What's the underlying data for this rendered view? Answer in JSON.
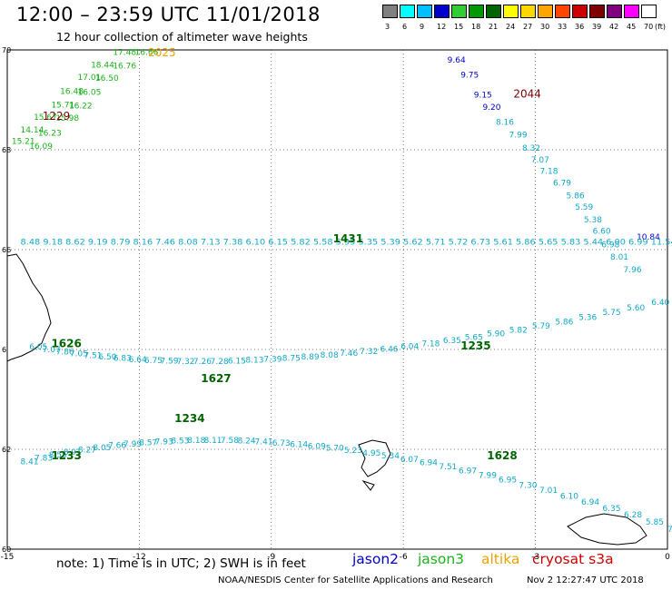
{
  "header": {
    "title": "12:00 – 23:59 UTC 11/01/2018",
    "subtitle": "12 hour collection of altimeter wave heights"
  },
  "legend": {
    "unit": "(ft)",
    "items": [
      {
        "label": "3",
        "color": "#808080"
      },
      {
        "label": "6",
        "color": "#00ffff"
      },
      {
        "label": "9",
        "color": "#00bfff"
      },
      {
        "label": "12",
        "color": "#0000cd"
      },
      {
        "label": "15",
        "color": "#32cd32"
      },
      {
        "label": "18",
        "color": "#009900"
      },
      {
        "label": "21",
        "color": "#006400"
      },
      {
        "label": "24",
        "color": "#ffff00"
      },
      {
        "label": "27",
        "color": "#ffd700"
      },
      {
        "label": "30",
        "color": "#ffa500"
      },
      {
        "label": "33",
        "color": "#ff4500"
      },
      {
        "label": "36",
        "color": "#cc0000"
      },
      {
        "label": "39",
        "color": "#800000"
      },
      {
        "label": "42",
        "color": "#800080"
      },
      {
        "label": "45",
        "color": "#ff00ff"
      },
      {
        "label": "70",
        "color": "#ffffff"
      }
    ]
  },
  "axes": {
    "x_ticks": [
      "-15",
      "-12",
      "-9",
      "-6",
      "-3",
      "0"
    ],
    "y_ticks": [
      "70",
      "68",
      "66",
      "64",
      "62",
      "60"
    ]
  },
  "tracks": [
    {
      "satellite": "jason3",
      "color": "#1ab21a",
      "pass_time": "1229",
      "time_color": "#7a0000",
      "time_pos": [
        -14.2,
        68.6
      ],
      "points": [
        {
          "v": "17.48",
          "lon": -12.6,
          "lat": 69.9
        },
        {
          "v": "16.66",
          "lon": -12.1,
          "lat": 69.9
        },
        {
          "v": "18.44",
          "lon": -13.1,
          "lat": 69.65
        },
        {
          "v": "16.76",
          "lon": -12.6,
          "lat": 69.63
        },
        {
          "v": "17.01",
          "lon": -13.4,
          "lat": 69.4
        },
        {
          "v": "16.50",
          "lon": -13.0,
          "lat": 69.38
        },
        {
          "v": "16.48",
          "lon": -13.8,
          "lat": 69.12
        },
        {
          "v": "16.05",
          "lon": -13.4,
          "lat": 69.1
        },
        {
          "v": "15.71",
          "lon": -14.0,
          "lat": 68.85
        },
        {
          "v": "16.22",
          "lon": -13.6,
          "lat": 68.83
        },
        {
          "v": "15.67",
          "lon": -14.4,
          "lat": 68.6
        },
        {
          "v": "15.98",
          "lon": -13.9,
          "lat": 68.58
        },
        {
          "v": "14.14",
          "lon": -14.7,
          "lat": 68.35
        },
        {
          "v": "16.23",
          "lon": -14.3,
          "lat": 68.28
        },
        {
          "v": "15.21",
          "lon": -14.9,
          "lat": 68.12
        },
        {
          "v": "16.09",
          "lon": -14.5,
          "lat": 68.02
        }
      ]
    },
    {
      "satellite": "altika",
      "color": "#f0a000",
      "pass_time": "2025",
      "time_color": "#f0a000",
      "time_pos": [
        -11.8,
        69.87
      ],
      "points": []
    },
    {
      "satellite": "jason2",
      "color": "#0000cc",
      "pass_time": "2044",
      "time_color": "#7a0000",
      "time_pos": [
        -3.5,
        69.05
      ],
      "points": [
        {
          "v": "9.64",
          "lon": -5.0,
          "lat": 69.75
        },
        {
          "v": "9.75",
          "lon": -4.7,
          "lat": 69.45
        },
        {
          "v": "9.15",
          "lon": -4.4,
          "lat": 69.05
        },
        {
          "v": "9.20",
          "lon": -4.2,
          "lat": 68.8
        },
        {
          "v": "10.84",
          "lon": -0.7,
          "lat": 66.2
        },
        {
          "v": "11.54",
          "lon": 0.1,
          "lat": 65.95
        }
      ]
    },
    {
      "satellite": "cryosat",
      "color": "#10a8c8",
      "pass_time": "",
      "time_color": "#10a8c8",
      "time_pos": [
        0,
        0
      ],
      "points": [
        {
          "v": "8.16",
          "lon": -3.9,
          "lat": 68.5
        },
        {
          "v": "7.99",
          "lon": -3.6,
          "lat": 68.25
        },
        {
          "v": "8.32",
          "lon": -3.3,
          "lat": 67.98
        },
        {
          "v": "7.07",
          "lon": -3.1,
          "lat": 67.75
        },
        {
          "v": "7.18",
          "lon": -2.9,
          "lat": 67.52
        },
        {
          "v": "6.79",
          "lon": -2.6,
          "lat": 67.28
        },
        {
          "v": "5.86",
          "lon": -2.3,
          "lat": 67.03
        },
        {
          "v": "5.59",
          "lon": -2.1,
          "lat": 66.8
        },
        {
          "v": "5.38",
          "lon": -1.9,
          "lat": 66.55
        },
        {
          "v": "6.60",
          "lon": -1.7,
          "lat": 66.32
        },
        {
          "v": "6.98",
          "lon": -1.5,
          "lat": 66.05
        },
        {
          "v": "8.01",
          "lon": -1.3,
          "lat": 65.8
        },
        {
          "v": "7.96",
          "lon": -1.0,
          "lat": 65.55
        }
      ]
    }
  ],
  "track_lines": [
    {
      "satellite": "cryosat",
      "color": "#10a8c8",
      "pass_time": "1431",
      "time_pos": [
        -7.6,
        66.15
      ],
      "text": "8.48 9.18 8.62 9.19 8.79 8.16 7.46 8.08 7.13 7.38 6.10 6.15 5.82 5.58 5.95 5.35 5.39 5.62 5.71 5.72 6.73 5.61 5.86 5.65 5.83 5.44 6.00 6.99 11.54",
      "start": [
        -14.7,
        66.1
      ],
      "end": [
        0.2,
        65.85
      ]
    }
  ],
  "arc_tracks": [
    {
      "satellite": "cryosat",
      "color": "#10a8c8",
      "label_color": "#006400",
      "values": [
        "6.05",
        "7.07",
        "7.86",
        "7.05",
        "7.51",
        "6.50",
        "6.83",
        "6.64",
        "6.75",
        "7.59",
        "7.32",
        "7.26",
        "7.28",
        "6.15",
        "8.13",
        "7.39",
        "8.75",
        "8.89",
        "8.08",
        "7.46",
        "7.32",
        "6.46",
        "6.04",
        "7.18",
        "6.35",
        "5.65",
        "5.90",
        "5.82",
        "5.79",
        "5.86",
        "5.36",
        "5.75",
        "5.60",
        "6.40",
        "7.50"
      ],
      "times": [
        {
          "t": "1626",
          "lon": -14.0,
          "lat": 64.05
        },
        {
          "t": "1627",
          "lon": -10.6,
          "lat": 63.35
        },
        {
          "t": "1235",
          "lon": -4.7,
          "lat": 64.0
        }
      ],
      "start": [
        -14.5,
        64.0
      ],
      "mid": [
        -9.5,
        63.1
      ],
      "end": [
        0.2,
        65.0
      ]
    },
    {
      "satellite": "cryosat",
      "color": "#10a8c8",
      "label_color": "#006400",
      "values": [
        "8.41",
        "7.83",
        "8.55",
        "8.91",
        "8.27",
        "8.05",
        "7.66",
        "7.99",
        "8.57",
        "7.93",
        "8.53",
        "8.18",
        "8.11",
        "7.58",
        "8.24",
        "7.41",
        "6.73",
        "6.14",
        "6.09",
        "5.70",
        "5.23",
        "4.95",
        "5.34",
        "6.07",
        "6.94",
        "7.51",
        "6.97",
        "7.99",
        "6.95",
        "7.30",
        "7.01",
        "6.10",
        "6.94",
        "6.35",
        "6.28",
        "5.85",
        "7.53"
      ],
      "times": [
        {
          "t": "1233",
          "lon": -14.0,
          "lat": 61.8
        },
        {
          "t": "1234",
          "lon": -11.2,
          "lat": 62.55
        },
        {
          "t": "1628",
          "lon": -4.1,
          "lat": 61.8
        }
      ],
      "start": [
        -14.7,
        61.7
      ],
      "mid": [
        -9.0,
        63.0
      ],
      "end": [
        0.0,
        60.35
      ]
    }
  ],
  "footer": {
    "note": "note:  1) Time is in UTC;  2) SWH is in feet",
    "satellites": [
      {
        "name": "jason2",
        "color": "#0000cc"
      },
      {
        "name": "jason3",
        "color": "#1ab21a"
      },
      {
        "name": "altika",
        "color": "#f0a000"
      },
      {
        "name": "cryosat s3a",
        "color": "#cc0000"
      }
    ],
    "credit": "NOAA/NESDIS Center for Satellite Applications and Research",
    "timestamp": "Nov  2 12:27:47 UTC 2018"
  }
}
